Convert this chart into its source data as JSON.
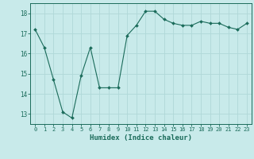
{
  "xlabel": "Humidex (Indice chaleur)",
  "x": [
    0,
    1,
    2,
    3,
    4,
    5,
    6,
    7,
    8,
    9,
    10,
    11,
    12,
    13,
    14,
    15,
    16,
    17,
    18,
    19,
    20,
    21,
    22,
    23
  ],
  "y": [
    17.2,
    16.3,
    14.7,
    13.1,
    12.8,
    14.9,
    16.3,
    14.3,
    14.3,
    14.3,
    16.9,
    17.4,
    18.1,
    18.1,
    17.7,
    17.5,
    17.4,
    17.4,
    17.6,
    17.5,
    17.5,
    17.3,
    17.2,
    17.5
  ],
  "line_color": "#1a6b5a",
  "bg_color": "#c8eaea",
  "grid_color": "#b0d8d8",
  "tick_color": "#1a6b5a",
  "spine_color": "#1a6b5a",
  "ylim": [
    12.5,
    18.5
  ],
  "yticks": [
    13,
    14,
    15,
    16,
    17,
    18
  ],
  "figsize": [
    3.2,
    2.0
  ],
  "dpi": 100
}
